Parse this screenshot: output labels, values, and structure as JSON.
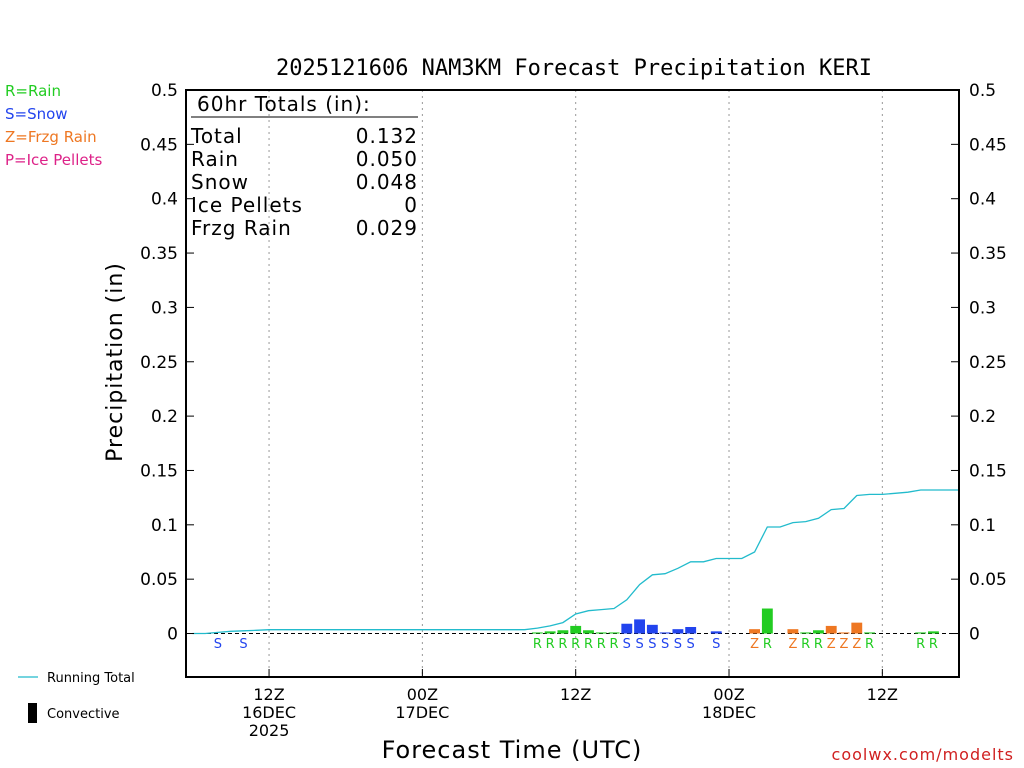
{
  "chart_data": {
    "type": "bar",
    "title": "2025121606 NAM3KM Forecast Precipitation KERI",
    "xlabel": "Forecast Time (UTC)",
    "ylabel": "Precipitation (in)",
    "ylim": [
      -0.04,
      0.5
    ],
    "yticks": [
      0,
      0.05,
      0.1,
      0.15,
      0.2,
      0.25,
      0.3,
      0.35,
      0.4,
      0.45,
      0.5
    ],
    "ytick_labels": [
      "0",
      "0.05",
      "0.1",
      "0.15",
      "0.2",
      "0.25",
      "0.3",
      "0.35",
      "0.4",
      "0.45",
      "0.5"
    ],
    "xlim": [
      -0.5,
      60
    ],
    "x_unit": "forecast hour",
    "xticks": [
      {
        "hour": 6,
        "lines": [
          "12Z",
          "16DEC",
          "2025"
        ]
      },
      {
        "hour": 18,
        "lines": [
          "00Z",
          "17DEC"
        ]
      },
      {
        "hour": 30,
        "lines": [
          "12Z"
        ]
      },
      {
        "hour": 42,
        "lines": [
          "00Z",
          "18DEC"
        ]
      },
      {
        "hour": 54,
        "lines": [
          "12Z"
        ]
      }
    ],
    "grid": "vertical dotted",
    "legend_types": [
      {
        "label": "R=Rain",
        "color": "#22cc22"
      },
      {
        "label": "S=Snow",
        "color": "#2244ee"
      },
      {
        "label": "Z=Frzg Rain",
        "color": "#ee7722"
      },
      {
        "label": "P=Ice Pellets",
        "color": "#dd2288"
      }
    ],
    "legend_lines": [
      {
        "label": "Running Total",
        "color": "#22bbcc"
      },
      {
        "label": "Convective",
        "color": "#000000"
      }
    ],
    "totals": {
      "header": "60hr Totals (in):",
      "rows": [
        {
          "label": "Total",
          "value": "0.132"
        },
        {
          "label": "Rain",
          "value": "0.050"
        },
        {
          "label": "Snow",
          "value": "0.048"
        },
        {
          "label": "Ice Pellets",
          "value": "0"
        },
        {
          "label": "Frzg Rain",
          "value": "0.029"
        }
      ]
    },
    "series": [
      {
        "name": "Hourly precipitation",
        "bars": [
          {
            "hour": 27,
            "value": 0.001,
            "type": "R"
          },
          {
            "hour": 28,
            "value": 0.002,
            "type": "R"
          },
          {
            "hour": 29,
            "value": 0.003,
            "type": "R"
          },
          {
            "hour": 30,
            "value": 0.007,
            "type": "R"
          },
          {
            "hour": 31,
            "value": 0.003,
            "type": "R"
          },
          {
            "hour": 32,
            "value": 0.001,
            "type": "R"
          },
          {
            "hour": 33,
            "value": 0.001,
            "type": "R"
          },
          {
            "hour": 34,
            "value": 0.009,
            "type": "S"
          },
          {
            "hour": 35,
            "value": 0.013,
            "type": "S"
          },
          {
            "hour": 36,
            "value": 0.008,
            "type": "S"
          },
          {
            "hour": 37,
            "value": 0.001,
            "type": "S"
          },
          {
            "hour": 38,
            "value": 0.004,
            "type": "S"
          },
          {
            "hour": 39,
            "value": 0.006,
            "type": "S"
          },
          {
            "hour": 41,
            "value": 0.002,
            "type": "S"
          },
          {
            "hour": 44,
            "value": 0.004,
            "type": "Z"
          },
          {
            "hour": 45,
            "value": 0.023,
            "type": "R"
          },
          {
            "hour": 47,
            "value": 0.004,
            "type": "Z"
          },
          {
            "hour": 48,
            "value": 0.001,
            "type": "R"
          },
          {
            "hour": 49,
            "value": 0.003,
            "type": "R"
          },
          {
            "hour": 50,
            "value": 0.007,
            "type": "Z"
          },
          {
            "hour": 51,
            "value": 0.001,
            "type": "Z"
          },
          {
            "hour": 52,
            "value": 0.01,
            "type": "Z"
          },
          {
            "hour": 53,
            "value": 0.001,
            "type": "R"
          },
          {
            "hour": 57,
            "value": 0.001,
            "type": "R"
          },
          {
            "hour": 58,
            "value": 0.002,
            "type": "R"
          }
        ]
      },
      {
        "name": "Running Total",
        "x": [
          0,
          1,
          2,
          3,
          4,
          5,
          6,
          7,
          26,
          27,
          28,
          29,
          30,
          31,
          32,
          33,
          34,
          35,
          36,
          37,
          38,
          39,
          40,
          41,
          42,
          43,
          44,
          45,
          46,
          47,
          48,
          49,
          50,
          51,
          52,
          53,
          54,
          55,
          56,
          57,
          58,
          59,
          60
        ],
        "values": [
          0,
          0,
          0.001,
          0.002,
          0.0025,
          0.003,
          0.0035,
          0.0035,
          0.0035,
          0.005,
          0.007,
          0.01,
          0.018,
          0.021,
          0.022,
          0.023,
          0.031,
          0.045,
          0.054,
          0.055,
          0.06,
          0.066,
          0.066,
          0.069,
          0.069,
          0.069,
          0.075,
          0.098,
          0.098,
          0.102,
          0.103,
          0.106,
          0.114,
          0.115,
          0.127,
          0.128,
          0.128,
          0.129,
          0.13,
          0.132,
          0.132,
          0.132,
          0.132
        ]
      }
    ],
    "precip_type_letters": [
      {
        "hour": 2,
        "type": "S"
      },
      {
        "hour": 4,
        "type": "S"
      },
      {
        "hour": 27,
        "type": "R"
      },
      {
        "hour": 28,
        "type": "R"
      },
      {
        "hour": 29,
        "type": "R"
      },
      {
        "hour": 30,
        "type": "R"
      },
      {
        "hour": 31,
        "type": "R"
      },
      {
        "hour": 32,
        "type": "R"
      },
      {
        "hour": 33,
        "type": "R"
      },
      {
        "hour": 34,
        "type": "S"
      },
      {
        "hour": 35,
        "type": "S"
      },
      {
        "hour": 36,
        "type": "S"
      },
      {
        "hour": 37,
        "type": "S"
      },
      {
        "hour": 38,
        "type": "S"
      },
      {
        "hour": 39,
        "type": "S"
      },
      {
        "hour": 41,
        "type": "S"
      },
      {
        "hour": 44,
        "type": "Z"
      },
      {
        "hour": 45,
        "type": "R"
      },
      {
        "hour": 47,
        "type": "Z"
      },
      {
        "hour": 48,
        "type": "R"
      },
      {
        "hour": 49,
        "type": "R"
      },
      {
        "hour": 50,
        "type": "Z"
      },
      {
        "hour": 51,
        "type": "Z"
      },
      {
        "hour": 52,
        "type": "Z"
      },
      {
        "hour": 53,
        "type": "R"
      },
      {
        "hour": 57,
        "type": "R"
      },
      {
        "hour": 58,
        "type": "R"
      }
    ],
    "type_colors": {
      "R": "#22cc22",
      "S": "#2244ee",
      "Z": "#ee7722",
      "P": "#dd2288"
    },
    "credit": "coolwx.com/modelts"
  }
}
